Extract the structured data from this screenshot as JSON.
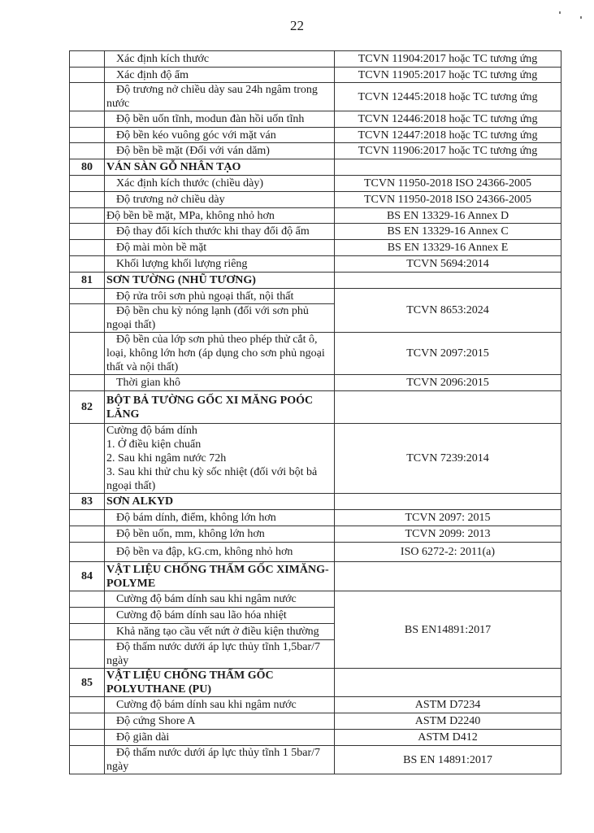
{
  "page_number": "22",
  "rows": [
    {
      "no": "",
      "item": "Xác định kích thước",
      "standard": "TCVN 11904:2017  hoặc TC tương ứng"
    },
    {
      "no": "",
      "item": "Xác định độ ẩm",
      "standard": "TCVN 11905:2017  hoặc TC tương ứng"
    },
    {
      "no": "",
      "item": "Độ trương nở chiều dày sau 24h ngâm trong nước",
      "standard": "TCVN 12445:2018  hoặc TC tương ứng"
    },
    {
      "no": "",
      "item": "Độ bền uốn tĩnh, modun đàn hồi uốn tĩnh",
      "standard": "TCVN 12446:2018 hoặc TC tương ứng"
    },
    {
      "no": "",
      "item": "Độ bền kéo vuông góc với mặt ván",
      "standard": "TCVN 12447:2018  hoặc TC tương ứng"
    },
    {
      "no": "",
      "item": "Độ bền bề mặt (Đối với ván dăm)",
      "standard": "TCVN 11906:2017  hoặc TC tương ứng"
    },
    {
      "no": "80",
      "item": "VÁN SÀN GỖ NHÂN TẠO",
      "standard": "",
      "header": true
    },
    {
      "no": "",
      "item": "Xác định kích thước (chiều dày)",
      "standard": "TCVN 11950-2018 ISO 24366-2005"
    },
    {
      "no": "",
      "item": "Độ trương nở chiều dày",
      "standard": "TCVN 11950-2018 ISO 24366-2005"
    },
    {
      "no": "",
      "item": "Độ bền bề mặt, MPa, không nhỏ hơn",
      "standard": "BS EN 13329-16 Annex D"
    },
    {
      "no": "",
      "item": "Độ thay đổi kích thước khi thay đổi độ ẩm",
      "standard": "BS EN 13329-16 Annex C"
    },
    {
      "no": "",
      "item": "Độ mài mòn bề mặt",
      "standard": "BS EN 13329-16 Annex E"
    },
    {
      "no": "",
      "item": "Khối lượng khối lượng riêng",
      "standard": "TCVN 5694:2014"
    },
    {
      "no": "81",
      "item": "SƠN TƯỜNG (NHŨ TƯƠNG)",
      "standard": "",
      "header": true
    },
    {
      "no": "",
      "item": "Độ rửa trôi sơn phủ ngoại thất, nội thất",
      "standard": "TCVN 8653:2024"
    },
    {
      "no": "",
      "item": "Độ bền chu kỳ nóng lạnh (đối với sơn phủ ngoại thất)",
      "standard": ""
    },
    {
      "no": "",
      "item": "Độ bền của lớp sơn phủ theo phép thử cắt ô, loại, không lớn hơn (áp dụng cho sơn phủ ngoại thất và nội thất)",
      "standard": "TCVN 2097:2015"
    },
    {
      "no": "",
      "item": "Thời gian khô",
      "standard": "TCVN 2096:2015"
    },
    {
      "no": "82",
      "item": "BỘT BẢ TƯỜNG GỐC XI MĂNG POÓC LĂNG",
      "standard": "",
      "header": true
    },
    {
      "no": "",
      "item": "Cường độ bám dính\n1. Ở điều kiện chuẩn\n2. Sau khi ngâm nước 72h\n3. Sau khi thử chu kỳ sốc nhiệt (đối với bột bả ngoại thất)",
      "standard": "TCVN 7239:2014"
    },
    {
      "no": "83",
      "item": "SƠN ALKYD",
      "standard": "",
      "header": true
    },
    {
      "no": "",
      "item": "Độ bám dính, điểm, không lớn hơn",
      "standard": "TCVN 2097: 2015"
    },
    {
      "no": "",
      "item": "Độ bền uốn, mm, không lớn hơn",
      "standard": "TCVN 2099: 2013"
    },
    {
      "no": "",
      "item": "Độ bền va đập, kG.cm, không nhỏ hơn",
      "standard": "ISO 6272-2: 2011(a)"
    },
    {
      "no": "84",
      "item": "VẬT LIỆU CHỐNG THẤM GỐC XIMĂNG- POLYME",
      "standard": "",
      "header": true
    },
    {
      "no": "",
      "item": "Cường độ bám dính sau khi ngâm nước",
      "standard": "BS EN14891:2017"
    },
    {
      "no": "",
      "item": "Cường độ bám dính sau lão hóa nhiệt",
      "standard": ""
    },
    {
      "no": "",
      "item": "Khả năng tạo cầu vết nứt ở điều kiện thường",
      "standard": ""
    },
    {
      "no": "",
      "item": "Độ thấm nước dưới áp lực thủy tĩnh 1,5bar/7 ngày",
      "standard": ""
    },
    {
      "no": "85",
      "item": "VẬT LIỆU CHỐNG THẤM GỐC POLYUTHANE (PU)",
      "standard": "",
      "header": true
    },
    {
      "no": "",
      "item": "Cường độ bám dính sau khi ngâm nước",
      "standard": "ASTM D7234"
    },
    {
      "no": "",
      "item": "Độ cứng Shore A",
      "standard": "ASTM D2240"
    },
    {
      "no": "",
      "item": "Độ giãn dài",
      "standard": "ASTM D412"
    },
    {
      "no": "",
      "item": "Độ thấm nước dưới áp lực thủy tĩnh 1 5bar/7 ngày",
      "standard": "BS EN 14891:2017"
    }
  ]
}
